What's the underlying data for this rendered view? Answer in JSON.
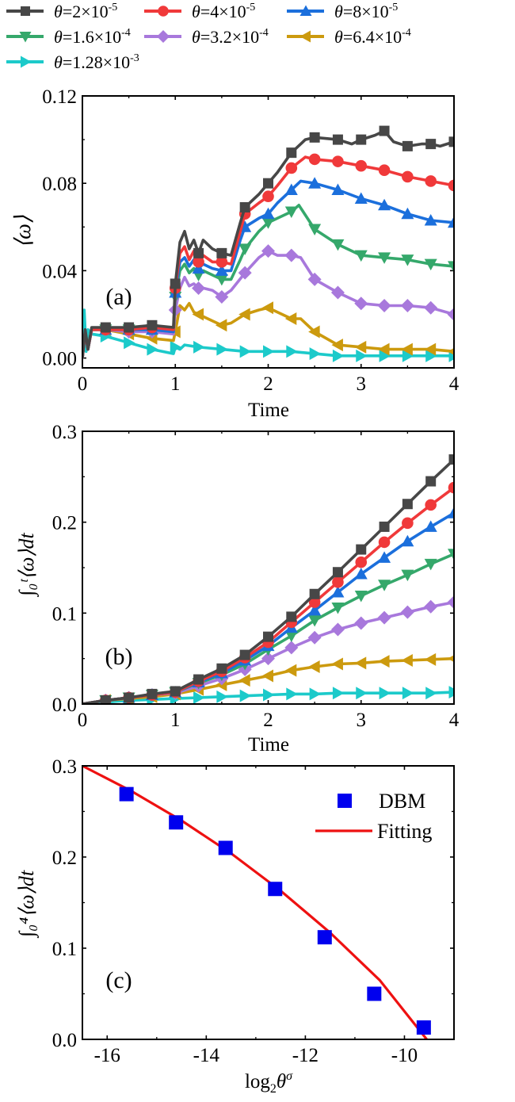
{
  "legend": {
    "series": [
      {
        "name": "theta-2e-5",
        "prefix": "θ",
        "eq": "=2×10",
        "exp": "-5",
        "color": "#474747",
        "marker": "square"
      },
      {
        "name": "theta-4e-5",
        "prefix": "θ",
        "eq": "=4×10",
        "exp": "-5",
        "color": "#f0393a",
        "marker": "circle"
      },
      {
        "name": "theta-8e-5",
        "prefix": "θ",
        "eq": "=8×10",
        "exp": "-5",
        "color": "#1b6fdc",
        "marker": "triangle-up"
      },
      {
        "name": "theta-1.6e-4",
        "prefix": "θ",
        "eq": "=1.6×10",
        "exp": "-4",
        "color": "#35a86b",
        "marker": "triangle-down"
      },
      {
        "name": "theta-3.2e-4",
        "prefix": "θ",
        "eq": "=3.2×10",
        "exp": "-4",
        "color": "#a878dc",
        "marker": "diamond"
      },
      {
        "name": "theta-6.4e-4",
        "prefix": "θ",
        "eq": "=6.4×10",
        "exp": "-4",
        "color": "#cc9a0e",
        "marker": "triangle-left"
      },
      {
        "name": "theta-1.28e-3",
        "prefix": "θ",
        "eq": "=1.28×10",
        "exp": "-3",
        "color": "#1ccaca",
        "marker": "triangle-right"
      }
    ]
  },
  "chart_data": [
    {
      "type": "line",
      "panel_label": "(a)",
      "xlabel": "Time",
      "ylabel": "⟨ω⟩",
      "xlim": [
        0,
        4
      ],
      "ylim": [
        -0.0045,
        0.12
      ],
      "xticks": [
        0,
        1,
        2,
        3,
        4
      ],
      "xtick_labels": [
        "0",
        "1",
        "2",
        "3",
        "4"
      ],
      "yticks": [
        0,
        0.04,
        0.08,
        0.12
      ],
      "ytick_labels": [
        "0.00",
        "0.04",
        "0.08",
        "0.12"
      ],
      "marker_x": [
        0.25,
        0.5,
        0.75,
        1.0,
        1.25,
        1.5,
        1.75,
        2.0,
        2.25,
        2.5,
        2.75,
        3.0,
        3.25,
        3.5,
        3.75,
        4.0
      ],
      "series": [
        {
          "name": "θ=2×10^-5",
          "x": [
            0,
            0.03,
            0.06,
            0.1,
            0.25,
            0.5,
            0.75,
            0.98,
            1.0,
            1.05,
            1.1,
            1.15,
            1.2,
            1.25,
            1.3,
            1.4,
            1.5,
            1.6,
            1.7,
            1.75,
            1.9,
            2.0,
            2.1,
            2.25,
            2.4,
            2.5,
            2.75,
            2.9,
            3.0,
            3.15,
            3.25,
            3.35,
            3.5,
            3.65,
            3.75,
            3.85,
            4.0
          ],
          "y": [
            0.0,
            0.013,
            0.004,
            0.014,
            0.014,
            0.014,
            0.015,
            0.014,
            0.034,
            0.053,
            0.058,
            0.05,
            0.054,
            0.048,
            0.054,
            0.05,
            0.048,
            0.047,
            0.062,
            0.069,
            0.075,
            0.08,
            0.085,
            0.094,
            0.1,
            0.101,
            0.1,
            0.098,
            0.1,
            0.102,
            0.104,
            0.099,
            0.097,
            0.098,
            0.098,
            0.097,
            0.099
          ]
        },
        {
          "name": "θ=4×10^-5",
          "x": [
            0,
            0.03,
            0.06,
            0.1,
            0.25,
            0.5,
            0.75,
            0.98,
            1.0,
            1.05,
            1.1,
            1.15,
            1.2,
            1.25,
            1.3,
            1.4,
            1.5,
            1.6,
            1.7,
            1.75,
            1.9,
            2.0,
            2.1,
            2.25,
            2.4,
            2.5,
            2.75,
            3.0,
            3.25,
            3.5,
            3.75,
            4.0
          ],
          "y": [
            0.0,
            0.012,
            0.004,
            0.013,
            0.013,
            0.013,
            0.014,
            0.013,
            0.032,
            0.048,
            0.051,
            0.045,
            0.049,
            0.044,
            0.047,
            0.044,
            0.044,
            0.043,
            0.058,
            0.066,
            0.071,
            0.074,
            0.079,
            0.087,
            0.092,
            0.091,
            0.09,
            0.088,
            0.086,
            0.083,
            0.081,
            0.079
          ]
        },
        {
          "name": "θ=8×10^-5",
          "x": [
            0,
            0.03,
            0.06,
            0.1,
            0.25,
            0.5,
            0.75,
            0.98,
            1.0,
            1.05,
            1.1,
            1.15,
            1.2,
            1.25,
            1.3,
            1.4,
            1.5,
            1.6,
            1.7,
            1.75,
            1.9,
            2.0,
            2.1,
            2.25,
            2.35,
            2.5,
            2.75,
            3.0,
            3.25,
            3.5,
            3.75,
            4.0
          ],
          "y": [
            0.0,
            0.012,
            0.004,
            0.013,
            0.013,
            0.013,
            0.013,
            0.012,
            0.03,
            0.044,
            0.046,
            0.042,
            0.045,
            0.041,
            0.043,
            0.041,
            0.04,
            0.04,
            0.054,
            0.06,
            0.064,
            0.066,
            0.071,
            0.077,
            0.081,
            0.08,
            0.077,
            0.073,
            0.07,
            0.066,
            0.063,
            0.062
          ]
        },
        {
          "name": "θ=1.6×10^-4",
          "x": [
            0,
            0.03,
            0.06,
            0.1,
            0.25,
            0.5,
            0.75,
            0.98,
            1.0,
            1.05,
            1.1,
            1.15,
            1.2,
            1.25,
            1.3,
            1.4,
            1.5,
            1.6,
            1.7,
            1.75,
            1.9,
            2.0,
            2.1,
            2.25,
            2.33,
            2.5,
            2.75,
            3.0,
            3.25,
            3.5,
            3.75,
            4.0
          ],
          "y": [
            0.0,
            0.012,
            0.004,
            0.013,
            0.013,
            0.013,
            0.013,
            0.012,
            0.028,
            0.04,
            0.043,
            0.039,
            0.041,
            0.038,
            0.04,
            0.038,
            0.036,
            0.036,
            0.045,
            0.05,
            0.058,
            0.062,
            0.064,
            0.067,
            0.07,
            0.059,
            0.052,
            0.047,
            0.046,
            0.045,
            0.043,
            0.042
          ]
        },
        {
          "name": "θ=3.2×10^-4",
          "x": [
            0,
            0.03,
            0.06,
            0.1,
            0.25,
            0.5,
            0.75,
            0.98,
            1.0,
            1.05,
            1.1,
            1.15,
            1.2,
            1.25,
            1.3,
            1.4,
            1.5,
            1.6,
            1.75,
            1.9,
            2.0,
            2.1,
            2.25,
            2.35,
            2.5,
            2.75,
            3.0,
            3.25,
            3.5,
            3.75,
            4.0
          ],
          "y": [
            0.0,
            0.012,
            0.004,
            0.013,
            0.013,
            0.012,
            0.012,
            0.011,
            0.022,
            0.032,
            0.037,
            0.033,
            0.034,
            0.032,
            0.032,
            0.031,
            0.028,
            0.031,
            0.039,
            0.046,
            0.049,
            0.047,
            0.047,
            0.046,
            0.036,
            0.03,
            0.025,
            0.024,
            0.024,
            0.023,
            0.02
          ]
        },
        {
          "name": "θ=6.4×10^-4",
          "x": [
            0,
            0.03,
            0.06,
            0.1,
            0.25,
            0.5,
            0.75,
            0.98,
            1.0,
            1.05,
            1.1,
            1.15,
            1.2,
            1.25,
            1.4,
            1.5,
            1.6,
            1.75,
            1.9,
            2.0,
            2.25,
            2.35,
            2.5,
            2.75,
            3.0,
            3.25,
            3.5,
            3.75,
            4.0
          ],
          "y": [
            0.0,
            0.012,
            0.005,
            0.013,
            0.013,
            0.011,
            0.009,
            0.008,
            0.012,
            0.024,
            0.022,
            0.025,
            0.021,
            0.02,
            0.017,
            0.015,
            0.016,
            0.02,
            0.022,
            0.023,
            0.018,
            0.018,
            0.012,
            0.006,
            0.005,
            0.004,
            0.004,
            0.004,
            0.003
          ]
        },
        {
          "name": "θ=1.28×10^-3",
          "x": [
            0,
            0.02,
            0.04,
            0.06,
            0.1,
            0.25,
            0.5,
            0.75,
            0.98,
            1.0,
            1.05,
            1.1,
            1.25,
            1.5,
            1.75,
            2.0,
            2.25,
            2.5,
            2.75,
            3.0,
            3.25,
            3.5,
            3.75,
            4.0
          ],
          "y": [
            0.0,
            0.022,
            0.003,
            0.013,
            0.011,
            0.01,
            0.007,
            0.004,
            0.002,
            0.005,
            0.004,
            0.006,
            0.005,
            0.004,
            0.003,
            0.003,
            0.003,
            0.002,
            0.001,
            0.001,
            0.001,
            0.001,
            0.001,
            0.001
          ]
        }
      ]
    },
    {
      "type": "line",
      "panel_label": "(b)",
      "xlabel": "Time",
      "ylabel": "∫₀ᵗ⟨ω⟩dt",
      "xlim": [
        0,
        4
      ],
      "ylim": [
        0,
        0.3
      ],
      "xticks": [
        0,
        1,
        2,
        3,
        4
      ],
      "xtick_labels": [
        "0",
        "1",
        "2",
        "3",
        "4"
      ],
      "yticks": [
        0,
        0.1,
        0.2,
        0.3
      ],
      "ytick_labels": [
        "0.0",
        "0.1",
        "0.2",
        "0.3"
      ],
      "series": [
        {
          "name": "θ=2×10^-5",
          "x": [
            0,
            0.25,
            0.5,
            0.75,
            1.0,
            1.25,
            1.5,
            1.75,
            2.0,
            2.25,
            2.5,
            2.75,
            3.0,
            3.25,
            3.5,
            3.75,
            4.0
          ],
          "y": [
            0.0,
            0.004,
            0.007,
            0.011,
            0.014,
            0.027,
            0.039,
            0.054,
            0.074,
            0.096,
            0.121,
            0.145,
            0.17,
            0.195,
            0.22,
            0.245,
            0.269
          ]
        },
        {
          "name": "θ=4×10^-5",
          "x": [
            0,
            0.25,
            0.5,
            0.75,
            1.0,
            1.25,
            1.5,
            1.75,
            2.0,
            2.25,
            2.5,
            2.75,
            3.0,
            3.25,
            3.5,
            3.75,
            4.0
          ],
          "y": [
            0.0,
            0.004,
            0.007,
            0.01,
            0.013,
            0.025,
            0.036,
            0.051,
            0.068,
            0.09,
            0.112,
            0.134,
            0.156,
            0.178,
            0.199,
            0.219,
            0.238
          ]
        },
        {
          "name": "θ=8×10^-5",
          "x": [
            0,
            0.25,
            0.5,
            0.75,
            1.0,
            1.25,
            1.5,
            1.75,
            2.0,
            2.25,
            2.5,
            2.75,
            3.0,
            3.25,
            3.5,
            3.75,
            4.0
          ],
          "y": [
            0.0,
            0.004,
            0.007,
            0.01,
            0.013,
            0.024,
            0.034,
            0.048,
            0.064,
            0.084,
            0.103,
            0.123,
            0.143,
            0.161,
            0.179,
            0.195,
            0.21
          ]
        },
        {
          "name": "θ=1.6×10^-4",
          "x": [
            0,
            0.25,
            0.5,
            0.75,
            1.0,
            1.25,
            1.5,
            1.75,
            2.0,
            2.25,
            2.5,
            2.75,
            3.0,
            3.25,
            3.5,
            3.75,
            4.0
          ],
          "y": [
            0.0,
            0.004,
            0.007,
            0.01,
            0.013,
            0.023,
            0.032,
            0.044,
            0.06,
            0.075,
            0.092,
            0.106,
            0.119,
            0.131,
            0.142,
            0.154,
            0.165
          ]
        },
        {
          "name": "θ=3.2×10^-4",
          "x": [
            0,
            0.25,
            0.5,
            0.75,
            1.0,
            1.25,
            1.5,
            1.75,
            2.0,
            2.25,
            2.5,
            2.75,
            3.0,
            3.25,
            3.5,
            3.75,
            4.0
          ],
          "y": [
            0.0,
            0.004,
            0.007,
            0.01,
            0.012,
            0.02,
            0.028,
            0.038,
            0.05,
            0.062,
            0.073,
            0.082,
            0.089,
            0.095,
            0.101,
            0.107,
            0.112
          ]
        },
        {
          "name": "θ=6.4×10^-4",
          "x": [
            0,
            0.25,
            0.5,
            0.75,
            1.0,
            1.25,
            1.5,
            1.75,
            2.0,
            2.25,
            2.5,
            2.75,
            3.0,
            3.25,
            3.5,
            3.75,
            4.0
          ],
          "y": [
            0.0,
            0.004,
            0.006,
            0.008,
            0.011,
            0.016,
            0.021,
            0.026,
            0.031,
            0.037,
            0.041,
            0.044,
            0.045,
            0.047,
            0.048,
            0.049,
            0.05
          ]
        },
        {
          "name": "θ=1.28×10^-3",
          "x": [
            0,
            0.25,
            0.5,
            0.75,
            1.0,
            1.25,
            1.5,
            1.75,
            2.0,
            2.25,
            2.5,
            2.75,
            3.0,
            3.25,
            3.5,
            3.75,
            4.0
          ],
          "y": [
            0.0,
            0.002,
            0.004,
            0.005,
            0.006,
            0.007,
            0.008,
            0.009,
            0.01,
            0.011,
            0.011,
            0.012,
            0.012,
            0.012,
            0.012,
            0.012,
            0.013
          ]
        }
      ]
    },
    {
      "type": "scatter",
      "panel_label": "(c)",
      "xlabel": "log₂θ^σ",
      "ylabel": "∫₀⁴⟨ω⟩dt",
      "xlim": [
        -16.5,
        -9.0
      ],
      "ylim": [
        0,
        0.3
      ],
      "xticks": [
        -16,
        -14,
        -12,
        -10
      ],
      "xtick_labels": [
        "-16",
        "-14",
        "-12",
        "-10"
      ],
      "yticks": [
        0,
        0.1,
        0.2,
        0.3
      ],
      "ytick_labels": [
        "0.0",
        "0.1",
        "0.2",
        "0.3"
      ],
      "legend_position": "top-right",
      "series": [
        {
          "name": "DBM",
          "kind": "scatter",
          "color": "#0000ee",
          "x": [
            -15.61,
            -14.61,
            -13.61,
            -12.61,
            -11.61,
            -10.61,
            -9.61
          ],
          "y": [
            0.269,
            0.238,
            0.21,
            0.165,
            0.112,
            0.05,
            0.013
          ]
        },
        {
          "name": "Fitting",
          "kind": "line",
          "color": "#ee1111",
          "x": [
            -16.5,
            -15.5,
            -14.5,
            -13.5,
            -12.5,
            -11.5,
            -10.5,
            -9.55
          ],
          "y": [
            0.3,
            0.272,
            0.24,
            0.204,
            0.163,
            0.117,
            0.065,
            0.0
          ]
        }
      ]
    }
  ]
}
